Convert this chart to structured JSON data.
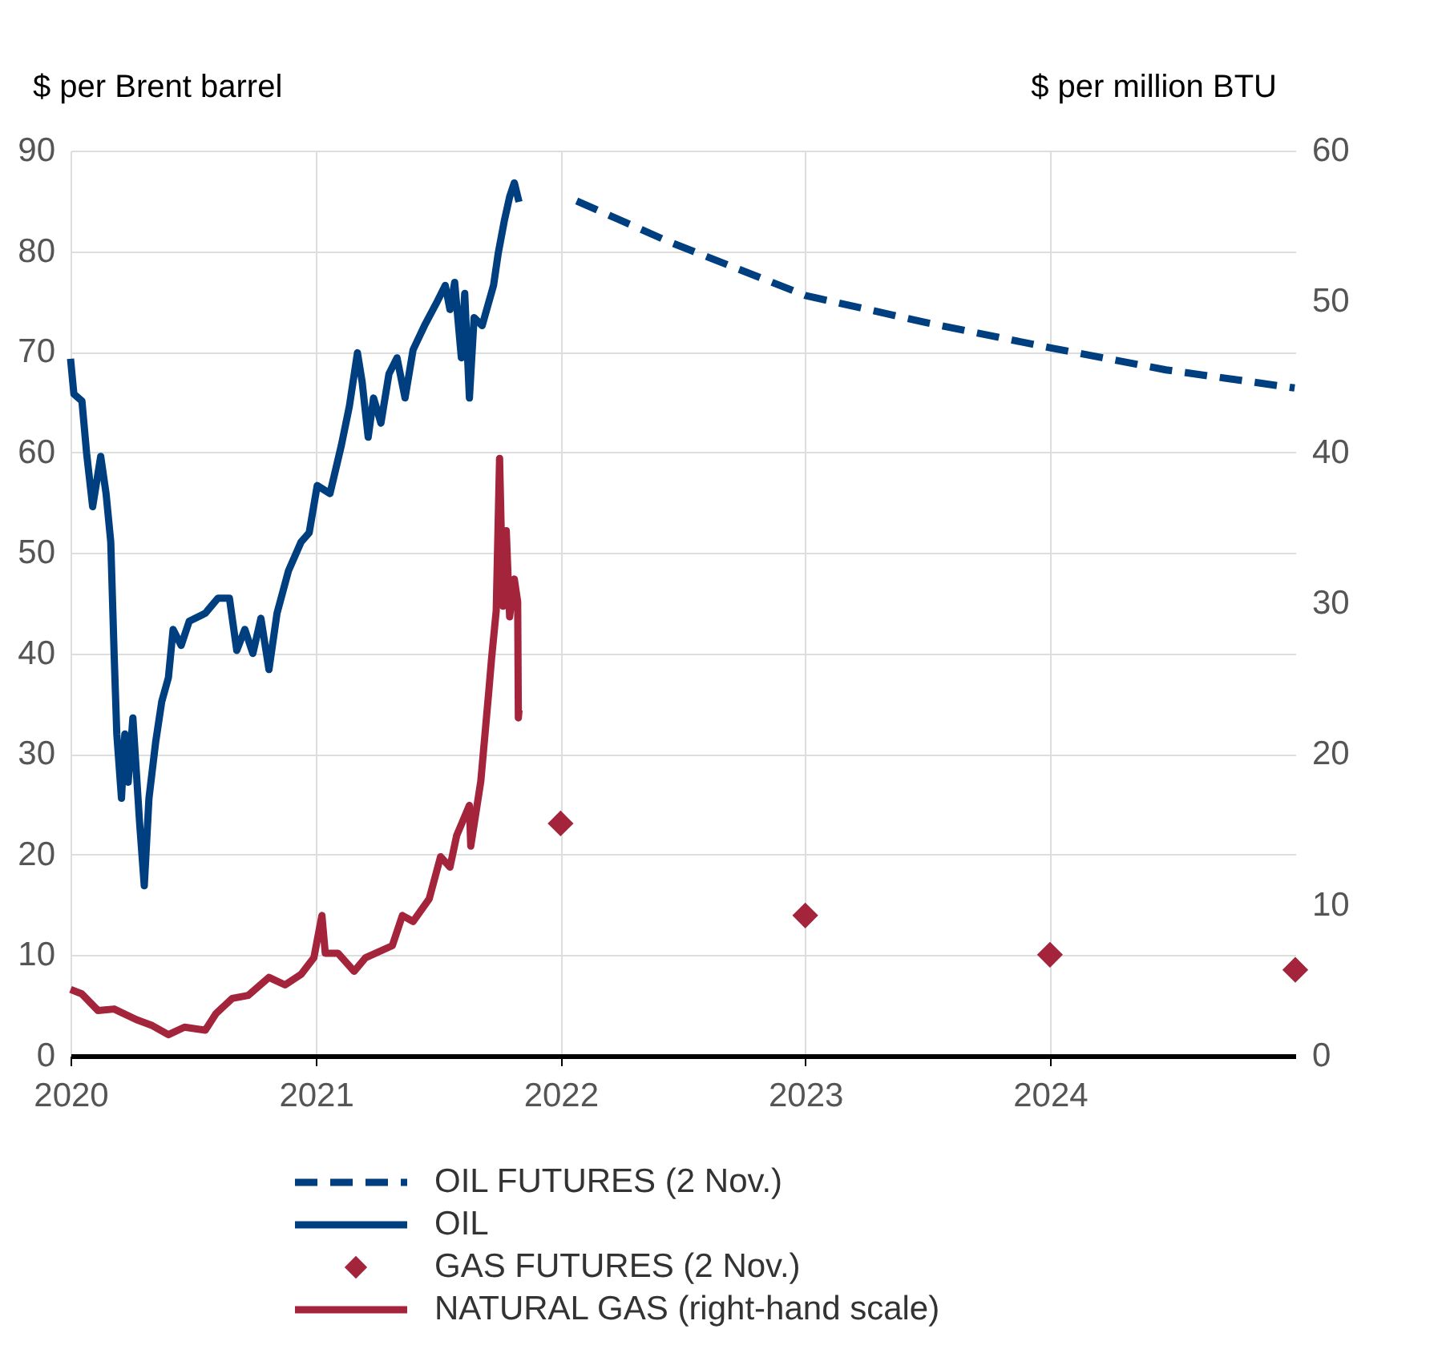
{
  "chart_data": {
    "type": "line",
    "ylabel": "$ per Brent barrel",
    "y2label": "$ per million BTU",
    "xlim": [
      "2020-01-01",
      "2025-01-01"
    ],
    "xticks": [
      "2020",
      "2021",
      "2022",
      "2023",
      "2024"
    ],
    "ylim": [
      0,
      90
    ],
    "yticks": [
      0,
      10,
      20,
      30,
      40,
      50,
      60,
      70,
      80,
      90
    ],
    "y2lim": [
      0,
      60
    ],
    "y2ticks": [
      0,
      10,
      20,
      30,
      40,
      50,
      60
    ],
    "grid": true,
    "legend": "bottom",
    "series": [
      {
        "name": "OIL FUTURES (2 Nov.)",
        "type": "line",
        "line_style": "dashed",
        "axis": "y",
        "color": "#003f7f",
        "x": [
          "2022-01-25",
          "2022-06-13",
          "2023-01-01",
          "2023-06-30",
          "2024-01-01",
          "2024-06-22",
          "2024-12-31"
        ],
        "values": [
          85.0,
          80.9,
          75.6,
          72.9,
          70.4,
          68.2,
          66.4
        ]
      },
      {
        "name": "OIL",
        "type": "line",
        "line_style": "solid",
        "axis": "y",
        "color": "#003f7f",
        "x": [
          "2020-01-01",
          "2020-01-06",
          "2020-01-18",
          "2020-01-25",
          "2020-02-03",
          "2020-02-15",
          "2020-02-23",
          "2020-03-01",
          "2020-03-06",
          "2020-03-10",
          "2020-03-17",
          "2020-03-22",
          "2020-03-27",
          "2020-04-03",
          "2020-04-13",
          "2020-04-20",
          "2020-04-27",
          "2020-05-07",
          "2020-05-16",
          "2020-05-26",
          "2020-06-02",
          "2020-06-14",
          "2020-06-26",
          "2020-07-20",
          "2020-08-08",
          "2020-08-25",
          "2020-09-05",
          "2020-09-17",
          "2020-09-29",
          "2020-10-11",
          "2020-10-23",
          "2020-11-04",
          "2020-11-21",
          "2020-12-10",
          "2020-12-22",
          "2021-01-03",
          "2021-01-22",
          "2021-02-08",
          "2021-02-20",
          "2021-03-04",
          "2021-03-11",
          "2021-03-20",
          "2021-03-28",
          "2021-04-08",
          "2021-04-20",
          "2021-05-02",
          "2021-05-14",
          "2021-05-26",
          "2021-06-12",
          "2021-07-01",
          "2021-07-13",
          "2021-07-20",
          "2021-07-27",
          "2021-08-06",
          "2021-08-11",
          "2021-08-18",
          "2021-08-25",
          "2021-09-06",
          "2021-09-23",
          "2021-09-30",
          "2021-10-09",
          "2021-10-17",
          "2021-10-24",
          "2021-10-31"
        ],
        "values": [
          69.3,
          65.8,
          65.1,
          59.9,
          54.6,
          59.6,
          55.9,
          51.1,
          40.0,
          32.0,
          25.6,
          32.0,
          27.2,
          33.6,
          23.2,
          16.9,
          25.6,
          31.2,
          35.2,
          37.6,
          42.4,
          40.8,
          43.2,
          44.0,
          45.5,
          45.5,
          40.3,
          42.4,
          40.0,
          43.5,
          38.4,
          44.0,
          48.2,
          51.1,
          52.0,
          56.7,
          55.9,
          60.7,
          64.6,
          69.9,
          67.0,
          61.5,
          65.4,
          62.9,
          67.8,
          69.4,
          65.4,
          70.2,
          72.6,
          75.0,
          76.6,
          74.2,
          76.9,
          69.4,
          75.8,
          65.4,
          73.4,
          72.6,
          76.6,
          79.8,
          83.0,
          85.4,
          86.8,
          84.9
        ]
      },
      {
        "name": "GAS FUTURES (2 Nov.)",
        "type": "scatter",
        "marker": "diamond",
        "axis": "y2",
        "color": "#a3243b",
        "x": [
          "2022-01-01",
          "2023-01-01",
          "2024-01-01",
          "2025-01-01"
        ],
        "values": [
          15.4,
          9.3,
          6.7,
          5.7
        ]
      },
      {
        "name": "NATURAL GAS (right-hand scale)",
        "type": "line",
        "line_style": "solid",
        "axis": "y2",
        "color": "#a3243b",
        "x": [
          "2020-01-01",
          "2020-01-18",
          "2020-02-11",
          "2020-03-06",
          "2020-04-08",
          "2020-05-02",
          "2020-05-26",
          "2020-06-19",
          "2020-07-20",
          "2020-08-05",
          "2020-08-29",
          "2020-09-22",
          "2020-10-23",
          "2020-11-16",
          "2020-12-10",
          "2020-12-29",
          "2021-01-10",
          "2021-01-15",
          "2021-02-03",
          "2021-02-27",
          "2021-03-16",
          "2021-04-25",
          "2021-05-10",
          "2021-05-26",
          "2021-06-19",
          "2021-07-06",
          "2021-07-20",
          "2021-07-30",
          "2021-08-18",
          "2021-08-20",
          "2021-09-04",
          "2021-09-16",
          "2021-09-20",
          "2021-09-27",
          "2021-10-02",
          "2021-10-07",
          "2021-10-12",
          "2021-10-17",
          "2021-10-24",
          "2021-10-29",
          "2021-10-30",
          "2021-10-31"
        ],
        "values": [
          4.4,
          4.1,
          3.0,
          3.1,
          2.4,
          2.0,
          1.4,
          1.9,
          1.7,
          2.8,
          3.8,
          4.0,
          5.2,
          4.7,
          5.4,
          6.5,
          9.3,
          6.8,
          6.8,
          5.6,
          6.5,
          7.3,
          9.3,
          8.9,
          10.4,
          13.2,
          12.5,
          14.6,
          16.6,
          13.9,
          18.2,
          24.2,
          26.3,
          29.5,
          39.6,
          29.8,
          34.8,
          29.1,
          31.6,
          30.1,
          22.4,
          22.9
        ]
      }
    ]
  }
}
